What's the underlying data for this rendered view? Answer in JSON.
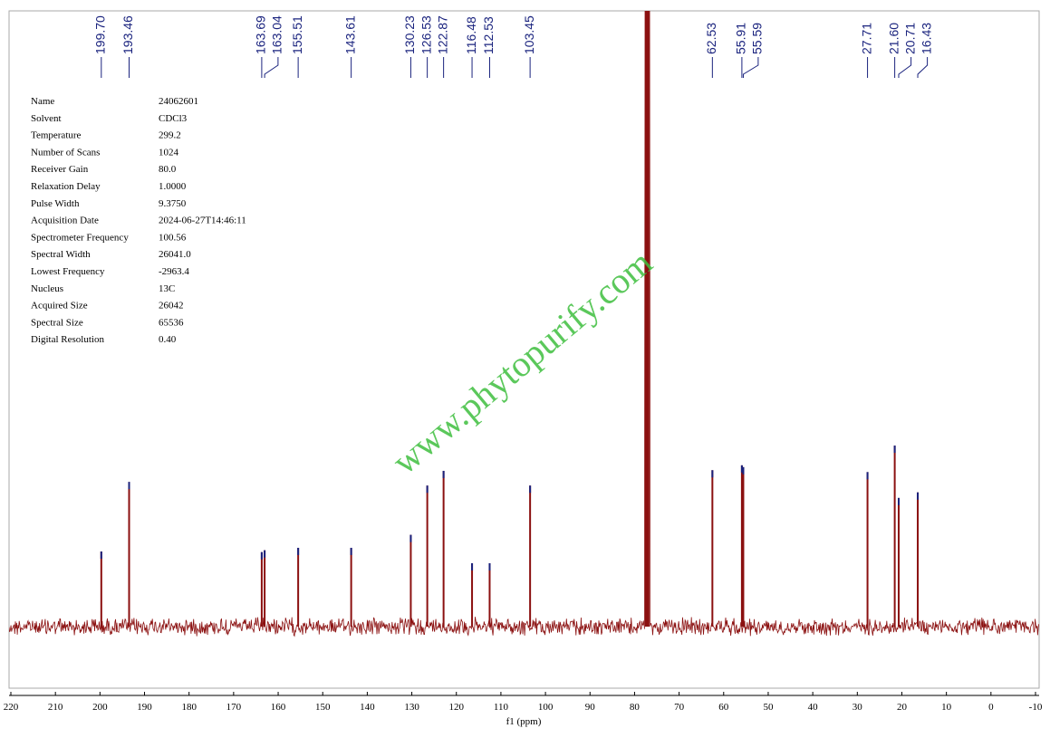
{
  "chart_data": {
    "type": "nmr",
    "xlabel": "f1 (ppm)",
    "xlim": [
      220,
      -10
    ],
    "xticks": [
      220,
      210,
      200,
      190,
      180,
      170,
      160,
      150,
      140,
      130,
      120,
      110,
      100,
      90,
      80,
      70,
      60,
      50,
      40,
      30,
      20,
      10,
      0,
      -10
    ],
    "ylim": [
      -10,
      100
    ],
    "color": "#8b1010",
    "peak_label_color": "#1a237e",
    "x": [
      199.7,
      193.46,
      163.69,
      163.04,
      155.51,
      143.61,
      130.23,
      126.53,
      122.87,
      116.48,
      112.53,
      103.45,
      62.53,
      55.91,
      55.59,
      27.71,
      21.6,
      20.71,
      16.43
    ],
    "x_labels": [
      "199.70",
      "193.46",
      "163.69",
      "163.04",
      "155.51",
      "143.61",
      "130.23",
      "126.53",
      "122.87",
      "116.48",
      "112.53",
      "103.45",
      "62.53",
      "55.91",
      "55.59",
      "27.71",
      "21.60",
      "20.71",
      "16.43"
    ],
    "values": [
      12.2,
      23.5,
      12.1,
      12.4,
      12.8,
      12.8,
      14.9,
      22.9,
      25.3,
      10.3,
      10.3,
      22.9,
      25.4,
      26.2,
      25.9,
      25.1,
      29.4,
      20.9,
      21.8
    ]
  },
  "parameters": [
    {
      "name": "Name",
      "value": "24062601"
    },
    {
      "name": "Solvent",
      "value": "CDCl3"
    },
    {
      "name": "Temperature",
      "value": "299.2"
    },
    {
      "name": "Number of Scans",
      "value": "1024"
    },
    {
      "name": "Receiver Gain",
      "value": "80.0"
    },
    {
      "name": "Relaxation Delay",
      "value": "1.0000"
    },
    {
      "name": "Pulse Width",
      "value": "9.3750"
    },
    {
      "name": "Acquisition Date",
      "value": "2024-06-27T14:46:11"
    },
    {
      "name": "Spectrometer Frequency",
      "value": "100.56"
    },
    {
      "name": "Spectral Width",
      "value": "26041.0"
    },
    {
      "name": "Lowest Frequency",
      "value": "-2963.4"
    },
    {
      "name": "Nucleus",
      "value": "13C"
    },
    {
      "name": "Acquired Size",
      "value": "26042"
    },
    {
      "name": "Spectral Size",
      "value": "65536"
    },
    {
      "name": "Digital Resolution",
      "value": "0.40"
    }
  ],
  "watermark": "www.phytopurify.com"
}
